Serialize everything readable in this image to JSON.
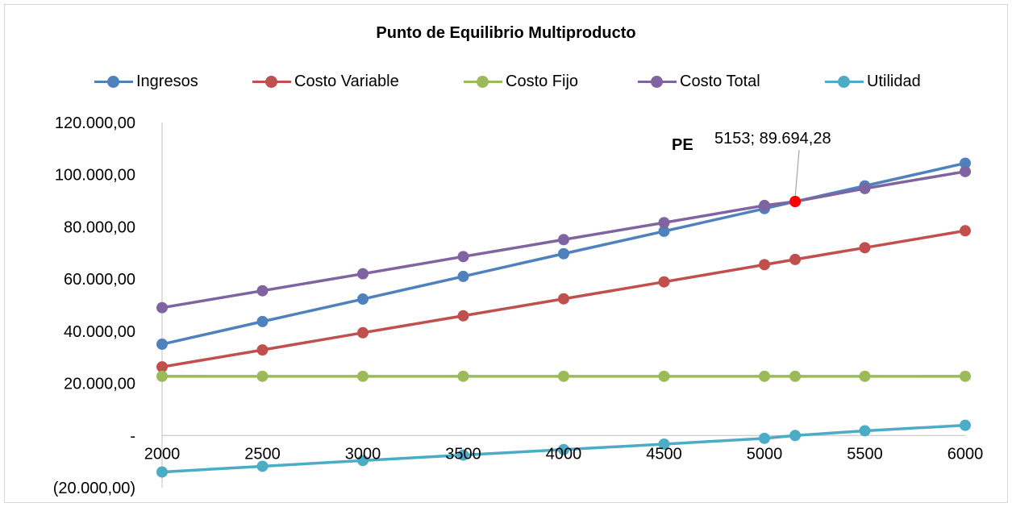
{
  "chart_data": {
    "type": "line",
    "title": "Punto de Equilibrio Multiproducto",
    "x": [
      2000,
      2500,
      3000,
      3500,
      4000,
      4500,
      5000,
      5153,
      5500,
      6000
    ],
    "x_tick_labels": [
      "2000",
      "2500",
      "3000",
      "3500",
      "4000",
      "4500",
      "5000",
      "5500",
      "6000"
    ],
    "x_ticks": [
      2000,
      2500,
      3000,
      3500,
      4000,
      4500,
      5000,
      5500,
      6000
    ],
    "y_ticks": [
      -20000,
      0,
      20000,
      40000,
      60000,
      80000,
      100000,
      120000
    ],
    "y_tick_labels": [
      "(20.000,00)",
      "-",
      "20.000,00",
      "40.000,00",
      "60.000,00",
      "80.000,00",
      "100.000,00",
      "120.000,00"
    ],
    "ylim": [
      -20000,
      120000
    ],
    "xlim": [
      2000,
      6000
    ],
    "legend_position": "top",
    "grid": false,
    "series": [
      {
        "name": "Ingresos",
        "color": "#4f81bd",
        "values": [
          35000,
          43700,
          52300,
          61000,
          69700,
          78300,
          87000,
          89694.28,
          95700,
          104400
        ]
      },
      {
        "name": "Costo Variable",
        "color": "#c0504d",
        "values": [
          26300,
          32800,
          39400,
          45900,
          52400,
          58900,
          65500,
          67500,
          72000,
          78500
        ]
      },
      {
        "name": "Costo Fijo",
        "color": "#9bbb59",
        "values": [
          22700,
          22700,
          22700,
          22700,
          22700,
          22700,
          22700,
          22700,
          22700,
          22700
        ]
      },
      {
        "name": "Costo Total",
        "color": "#8064a2",
        "values": [
          49000,
          55500,
          62000,
          68600,
          75100,
          81600,
          88200,
          89694.28,
          94700,
          101200
        ]
      },
      {
        "name": "Utilidad",
        "color": "#4bacc6",
        "values": [
          -14000,
          -11800,
          -9600,
          -7500,
          -5400,
          -3300,
          -1100,
          0,
          1800,
          3900
        ]
      }
    ],
    "annotation": {
      "label": "PE",
      "text": "5153;  89.694,28",
      "x": 5153,
      "y": 89694.28,
      "marker_color": "#ff0000"
    }
  }
}
